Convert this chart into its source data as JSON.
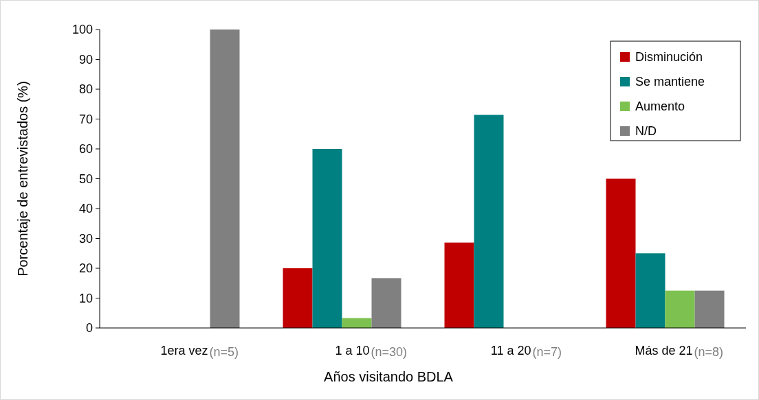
{
  "chart_data": {
    "type": "bar",
    "xlabel": "Años visitando BDLA",
    "ylabel": "Porcentaje de entrevistados  (%)",
    "categories": [
      "1era vez",
      "1 a 10",
      "11 a 20",
      "Más de 21"
    ],
    "series": [
      {
        "name": "Disminución",
        "color": "#c00000",
        "values": [
          0,
          20,
          28.6,
          50
        ]
      },
      {
        "name": "Se mantiene",
        "color": "#008080",
        "values": [
          0,
          60,
          71.4,
          25
        ]
      },
      {
        "name": "Aumento",
        "color": "#7dc250",
        "values": [
          0,
          3.3,
          0,
          12.5
        ]
      },
      {
        "name": "N/D",
        "color": "#808080",
        "values": [
          100,
          16.7,
          0,
          12.5
        ]
      }
    ],
    "ylim": [
      0,
      100
    ],
    "yticks": [
      0,
      10,
      20,
      30,
      40,
      50,
      60,
      70,
      80,
      90,
      100
    ],
    "legend": "top right",
    "annotations": [
      "(n=5)",
      "(n=30)",
      "(n=7)",
      "(n=8)"
    ]
  }
}
